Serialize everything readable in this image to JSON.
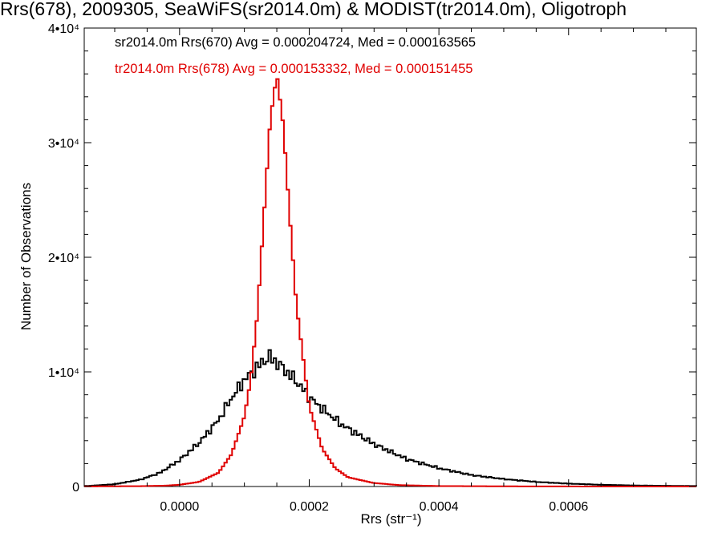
{
  "chart_data": {
    "type": "histogram",
    "title": "Rrs(678), 2009305, SeaWiFS(sr2014.0m) & MODIST(tr2014.0m), Oligotroph",
    "xlabel": "Rrs (str⁻¹)",
    "ylabel": "Number of Observations",
    "xlim": [
      -0.000147,
      0.000797
    ],
    "ylim": [
      0,
      40000
    ],
    "x_ticks": [
      0.0,
      0.0002,
      0.0004,
      0.0006
    ],
    "x_tick_labels": [
      "0.0000",
      "0.0002",
      "0.0004",
      "0.0006"
    ],
    "y_ticks": [
      0,
      10000,
      20000,
      30000,
      40000
    ],
    "y_tick_labels": [
      "0",
      "1•10⁴",
      "2•10⁴",
      "3•10⁴",
      "4•10⁴"
    ],
    "series": [
      {
        "name": "sr2014.0m Rrs(670) Avg = 0.000204724, Med = 0.000163565",
        "color": "#000000",
        "style": "step",
        "x": [
          -0.00014,
          -0.0001,
          -6e-05,
          -3e-05,
          0.0,
          3e-05,
          6e-05,
          8e-05,
          0.0001,
          0.00012,
          0.00013,
          0.00014,
          0.00015,
          0.00016,
          0.00018,
          0.0002,
          0.00022,
          0.00025,
          0.0003,
          0.00035,
          0.0004,
          0.00045,
          0.0005,
          0.00055,
          0.0006,
          0.00065,
          0.0007,
          0.00075,
          0.0008
        ],
        "y": [
          50,
          200,
          600,
          1200,
          2300,
          3800,
          5800,
          7700,
          9300,
          10400,
          11000,
          11300,
          10800,
          10300,
          9200,
          7800,
          6800,
          5400,
          3700,
          2400,
          1600,
          1000,
          650,
          400,
          250,
          150,
          90,
          60,
          40
        ]
      },
      {
        "name": "tr2014.0m Rrs(678) Avg = 0.000153332, Med = 0.000151455",
        "color": "#e00000",
        "style": "step",
        "x": [
          -0.00014,
          -6e-05,
          -2e-05,
          0.0,
          3e-05,
          6e-05,
          8e-05,
          0.0001,
          0.00011,
          0.00012,
          0.00013,
          0.00014,
          0.00015,
          0.00016,
          0.00017,
          0.00018,
          0.0002,
          0.00022,
          0.00024,
          0.00026,
          0.0003,
          0.00034,
          0.0004,
          0.0005,
          0.0006,
          0.0008
        ],
        "y": [
          10,
          30,
          80,
          150,
          400,
          1200,
          2800,
          6100,
          9400,
          15000,
          23500,
          32000,
          36000,
          31500,
          23500,
          16000,
          7000,
          3300,
          1600,
          800,
          300,
          120,
          40,
          15,
          5,
          0
        ]
      }
    ]
  }
}
